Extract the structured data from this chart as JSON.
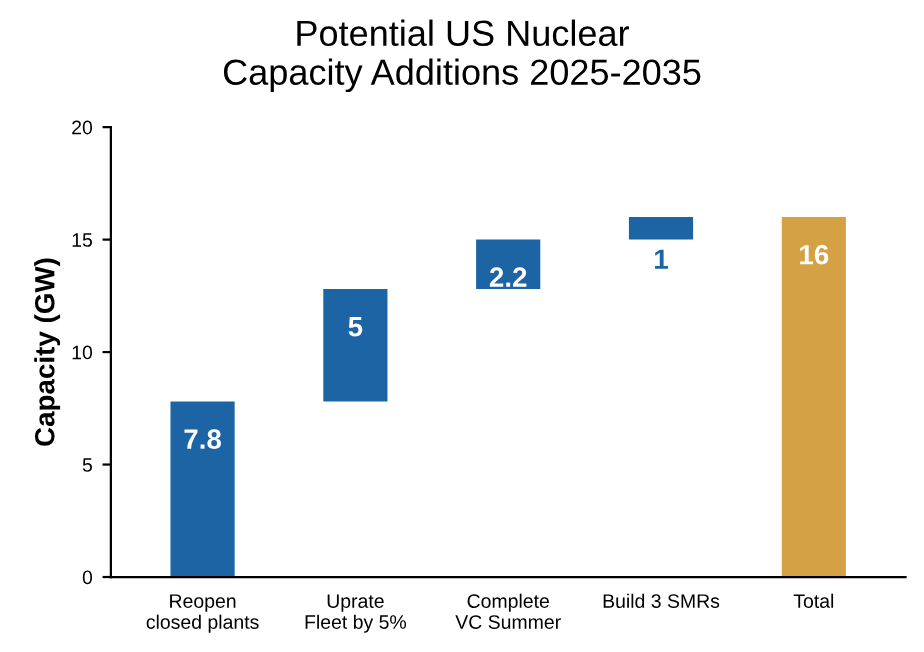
{
  "chart_data": {
    "type": "bar",
    "title": "Potential US Nuclear\nCapacity Additions 2025-2035",
    "ylabel": "Capacity (GW)",
    "categories": [
      "Reopen\nclosed plants",
      "Uprate\nFleet by 5%",
      "Complete\nVC Summer",
      "Build 3 SMRs",
      "Total"
    ],
    "values": [
      7.8,
      5,
      2.2,
      1,
      16
    ],
    "base": [
      0,
      7.8,
      12.8,
      15,
      0
    ],
    "colors": [
      "#1c64a4",
      "#1c64a4",
      "#1c64a4",
      "#1c64a4",
      "#d4a245"
    ],
    "data_labels": true,
    "ylim": [
      0,
      20
    ],
    "yticks": [
      0,
      5,
      10,
      15,
      20
    ],
    "grid": false,
    "legend": false
  }
}
